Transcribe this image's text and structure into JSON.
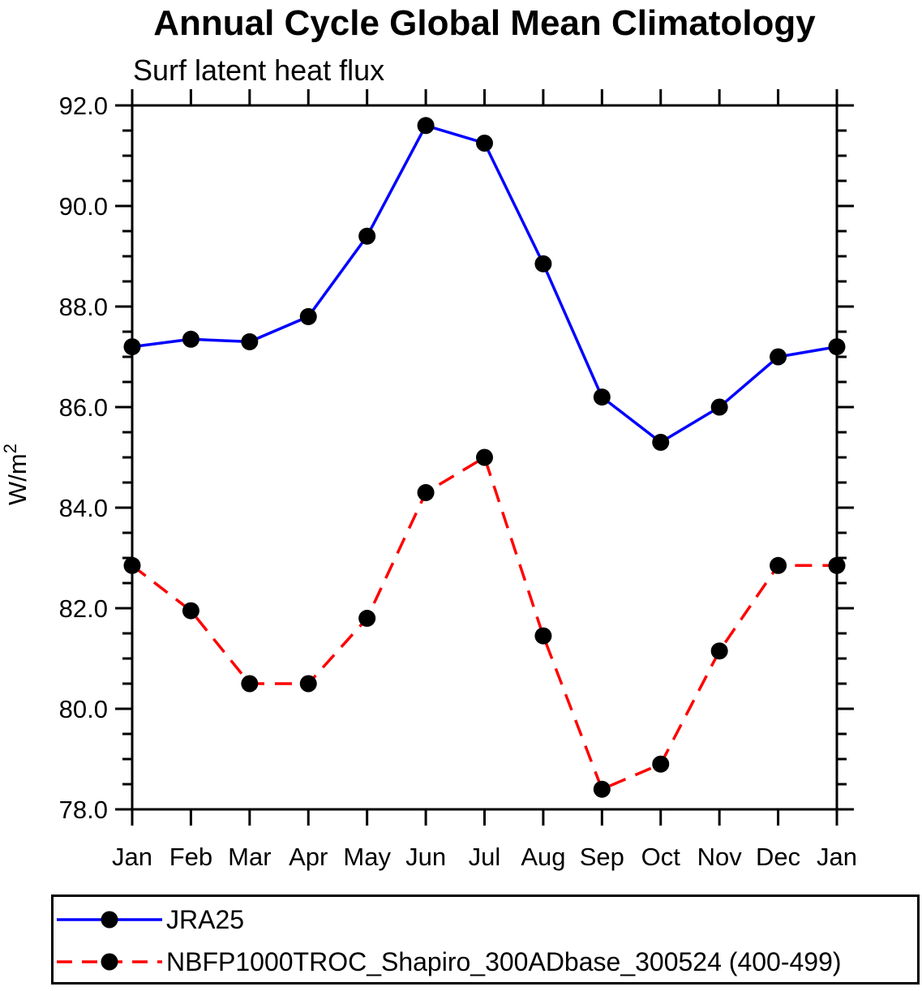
{
  "title": "Annual Cycle Global Mean Climatology",
  "subtitle": "Surf latent heat flux",
  "ylabel": {
    "base": "W/m",
    "sup": "2"
  },
  "axis_color": "#000000",
  "marker_color": "#000000",
  "chart_data": {
    "type": "line",
    "categories": [
      "Jan",
      "Feb",
      "Mar",
      "Apr",
      "May",
      "Jun",
      "Jul",
      "Aug",
      "Sep",
      "Oct",
      "Nov",
      "Dec",
      "Jan"
    ],
    "series": [
      {
        "name": "JRA25",
        "color": "#0000ff",
        "style": "solid",
        "marker": "circle",
        "values": [
          87.2,
          87.35,
          87.3,
          87.8,
          89.4,
          91.6,
          91.25,
          88.85,
          86.2,
          85.3,
          86.0,
          87.0,
          87.2
        ]
      },
      {
        "name": "NBFP1000TROC_Shapiro_300ADbase_300524 (400-499)",
        "color": "#ff0000",
        "style": "dashed",
        "marker": "circle",
        "values": [
          82.85,
          81.95,
          80.5,
          80.5,
          81.8,
          84.3,
          85.0,
          81.45,
          78.4,
          78.9,
          81.15,
          82.85,
          82.85
        ]
      }
    ],
    "title": "Annual Cycle Global Mean Climatology",
    "subtitle": "Surf latent heat flux",
    "xlabel": "",
    "ylabel": "W/m2",
    "ylim": [
      78.0,
      92.0
    ],
    "y_major_step": 2.0,
    "y_minor_step": 0.5,
    "y_tick_labels": [
      "78.0",
      "80.0",
      "82.0",
      "84.0",
      "86.0",
      "88.0",
      "90.0",
      "92.0"
    ],
    "grid": false,
    "legend_position": "bottom",
    "tick_direction": "out"
  }
}
